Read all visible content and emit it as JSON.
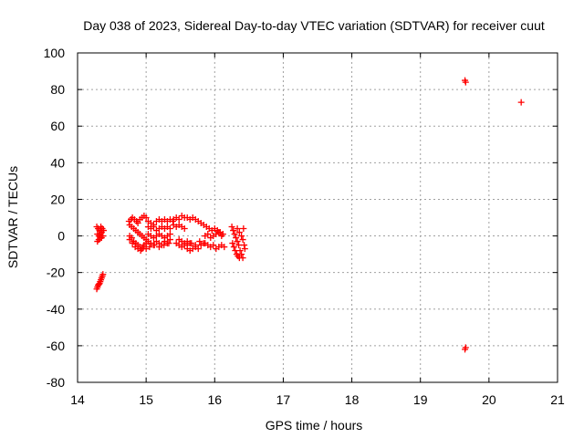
{
  "chart_data": {
    "type": "scatter",
    "title": "Day 038 of 2023, Sidereal Day-to-day VTEC variation (SDTVAR) for receiver cuut",
    "xlabel": "GPS time / hours",
    "ylabel": "SDTVAR / TECUs",
    "xlim": [
      14,
      21
    ],
    "ylim": [
      -80,
      100
    ],
    "xticks": [
      14,
      15,
      16,
      17,
      18,
      19,
      20,
      21
    ],
    "yticks": [
      -80,
      -60,
      -40,
      -20,
      0,
      20,
      40,
      60,
      80,
      100
    ],
    "xtick_labels": [
      "14",
      "15",
      "16",
      "17",
      "18",
      "19",
      "20",
      "21"
    ],
    "ytick_labels": [
      "-80",
      "-60",
      "-40",
      "-20",
      "0",
      "20",
      "40",
      "60",
      "80",
      "100"
    ],
    "grid": true,
    "marker": "+",
    "color": "#ff0000",
    "series": [
      {
        "name": "SDTVAR",
        "points": [
          [
            14.28,
            -29
          ],
          [
            14.29,
            -28
          ],
          [
            14.3,
            -27
          ],
          [
            14.31,
            -26.5
          ],
          [
            14.32,
            -26
          ],
          [
            14.33,
            -25
          ],
          [
            14.34,
            -24
          ],
          [
            14.35,
            -23
          ],
          [
            14.36,
            -22
          ],
          [
            14.37,
            -21
          ],
          [
            14.28,
            5
          ],
          [
            14.3,
            4
          ],
          [
            14.32,
            3
          ],
          [
            14.34,
            5
          ],
          [
            14.36,
            4
          ],
          [
            14.38,
            3
          ],
          [
            14.29,
            1
          ],
          [
            14.31,
            0
          ],
          [
            14.33,
            1
          ],
          [
            14.35,
            2
          ],
          [
            14.29,
            -3
          ],
          [
            14.31,
            -2
          ],
          [
            14.33,
            -1
          ],
          [
            14.35,
            -1
          ],
          [
            14.37,
            0
          ],
          [
            14.75,
            8
          ],
          [
            14.78,
            9
          ],
          [
            14.8,
            10
          ],
          [
            14.83,
            9
          ],
          [
            14.86,
            8
          ],
          [
            14.88,
            7
          ],
          [
            14.91,
            9
          ],
          [
            14.94,
            10
          ],
          [
            14.97,
            11
          ],
          [
            15.0,
            10
          ],
          [
            14.76,
            6
          ],
          [
            14.79,
            5
          ],
          [
            14.82,
            4
          ],
          [
            14.85,
            3
          ],
          [
            14.88,
            2
          ],
          [
            14.91,
            1
          ],
          [
            14.94,
            0
          ],
          [
            14.97,
            -1
          ],
          [
            15.0,
            -2
          ],
          [
            14.76,
            0
          ],
          [
            14.79,
            -1
          ],
          [
            14.82,
            -3
          ],
          [
            14.85,
            -4
          ],
          [
            14.88,
            -5
          ],
          [
            14.91,
            -6
          ],
          [
            14.94,
            -7
          ],
          [
            14.97,
            -5
          ],
          [
            15.0,
            -4
          ],
          [
            14.76,
            -2
          ],
          [
            14.8,
            -4
          ],
          [
            14.84,
            -6
          ],
          [
            14.88,
            -7
          ],
          [
            14.92,
            -8
          ],
          [
            14.96,
            -6
          ],
          [
            15.0,
            -7
          ],
          [
            15.03,
            8
          ],
          [
            15.07,
            7
          ],
          [
            15.11,
            6
          ],
          [
            15.15,
            8
          ],
          [
            15.19,
            9
          ],
          [
            15.23,
            8
          ],
          [
            15.27,
            9
          ],
          [
            15.31,
            8
          ],
          [
            15.35,
            9
          ],
          [
            15.39,
            8
          ],
          [
            15.03,
            5
          ],
          [
            15.07,
            4
          ],
          [
            15.11,
            5
          ],
          [
            15.15,
            3
          ],
          [
            15.19,
            4
          ],
          [
            15.23,
            5
          ],
          [
            15.27,
            4
          ],
          [
            15.31,
            5
          ],
          [
            15.35,
            4
          ],
          [
            15.03,
            1
          ],
          [
            15.07,
            0
          ],
          [
            15.11,
            -1
          ],
          [
            15.15,
            0
          ],
          [
            15.19,
            1
          ],
          [
            15.23,
            0
          ],
          [
            15.27,
            -1
          ],
          [
            15.31,
            0
          ],
          [
            15.35,
            1
          ],
          [
            15.03,
            -3
          ],
          [
            15.07,
            -4
          ],
          [
            15.11,
            -5
          ],
          [
            15.15,
            -3
          ],
          [
            15.19,
            -4
          ],
          [
            15.23,
            -5
          ],
          [
            15.27,
            -3
          ],
          [
            15.31,
            -4
          ],
          [
            15.35,
            -2
          ],
          [
            15.05,
            -6
          ],
          [
            15.12,
            -5
          ],
          [
            15.19,
            -6
          ],
          [
            15.26,
            -5
          ],
          [
            15.33,
            -4
          ],
          [
            15.4,
            9
          ],
          [
            15.44,
            10
          ],
          [
            15.48,
            9
          ],
          [
            15.52,
            11
          ],
          [
            15.56,
            10
          ],
          [
            15.6,
            10
          ],
          [
            15.64,
            9
          ],
          [
            15.68,
            10
          ],
          [
            15.72,
            9
          ],
          [
            15.76,
            8
          ],
          [
            15.8,
            7
          ],
          [
            15.4,
            6
          ],
          [
            15.44,
            5
          ],
          [
            15.48,
            6
          ],
          [
            15.52,
            5
          ],
          [
            15.56,
            4
          ],
          [
            15.44,
            -4
          ],
          [
            15.48,
            -5
          ],
          [
            15.52,
            -6
          ],
          [
            15.56,
            -5
          ],
          [
            15.6,
            -7
          ],
          [
            15.64,
            -8
          ],
          [
            15.68,
            -7
          ],
          [
            15.72,
            -6
          ],
          [
            15.76,
            -7
          ],
          [
            15.8,
            -5
          ],
          [
            15.48,
            -2
          ],
          [
            15.52,
            -3
          ],
          [
            15.56,
            -4
          ],
          [
            15.6,
            -5
          ],
          [
            15.64,
            -4
          ],
          [
            15.6,
            -3
          ],
          [
            15.66,
            -4
          ],
          [
            15.72,
            -5
          ],
          [
            15.78,
            -3
          ],
          [
            15.84,
            -4
          ],
          [
            15.84,
            6
          ],
          [
            15.88,
            5
          ],
          [
            15.92,
            4
          ],
          [
            15.96,
            3
          ],
          [
            16.0,
            4
          ],
          [
            16.04,
            3
          ],
          [
            16.08,
            2
          ],
          [
            16.12,
            1
          ],
          [
            15.86,
            0
          ],
          [
            15.9,
            1
          ],
          [
            15.94,
            -1
          ],
          [
            15.98,
            0
          ],
          [
            16.02,
            1
          ],
          [
            16.06,
            2
          ],
          [
            16.1,
            0
          ],
          [
            15.86,
            -4
          ],
          [
            15.9,
            -5
          ],
          [
            15.94,
            -6
          ],
          [
            15.98,
            -5
          ],
          [
            16.02,
            -7
          ],
          [
            16.06,
            -6
          ],
          [
            16.1,
            -5
          ],
          [
            16.14,
            -6
          ],
          [
            16.25,
            5
          ],
          [
            16.27,
            3
          ],
          [
            16.29,
            1
          ],
          [
            16.31,
            -1
          ],
          [
            16.33,
            -3
          ],
          [
            16.35,
            -5
          ],
          [
            16.37,
            -8
          ],
          [
            16.39,
            -10
          ],
          [
            16.41,
            -12
          ],
          [
            16.26,
            -4
          ],
          [
            16.28,
            -6
          ],
          [
            16.3,
            -8
          ],
          [
            16.32,
            -10
          ],
          [
            16.34,
            -11
          ],
          [
            16.36,
            -12
          ],
          [
            16.33,
            4
          ],
          [
            16.36,
            2
          ],
          [
            16.39,
            0
          ],
          [
            16.41,
            -2
          ],
          [
            16.43,
            -5
          ],
          [
            16.44,
            -7
          ],
          [
            16.42,
            4
          ],
          [
            19.65,
            85
          ],
          [
            19.66,
            84
          ],
          [
            19.65,
            -62
          ],
          [
            19.66,
            -61
          ],
          [
            20.47,
            73
          ]
        ]
      }
    ]
  }
}
